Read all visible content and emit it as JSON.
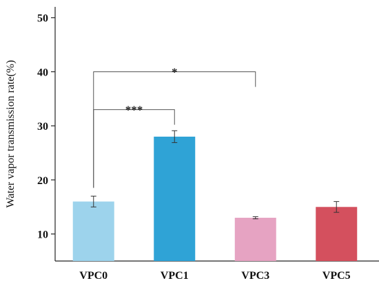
{
  "chart_data": {
    "type": "bar",
    "categories": [
      "VPC0",
      "VPC1",
      "VPC3",
      "VPC5"
    ],
    "values": [
      16,
      28,
      13,
      15
    ],
    "errors": [
      1.0,
      1.1,
      0.2,
      1.0
    ],
    "colors": [
      "#9dd3ec",
      "#2fa3d6",
      "#e6a3c2",
      "#d4505e"
    ],
    "ylabel": "Water vapor transmission rate(%)",
    "xlabel": "",
    "ylim": [
      5,
      52
    ],
    "yticks": [
      10,
      20,
      30,
      40,
      50
    ],
    "significance": [
      {
        "from": 0,
        "to": 1,
        "label": "***",
        "level": 33
      },
      {
        "from": 0,
        "to": 2,
        "label": "*",
        "level": 40
      }
    ]
  }
}
